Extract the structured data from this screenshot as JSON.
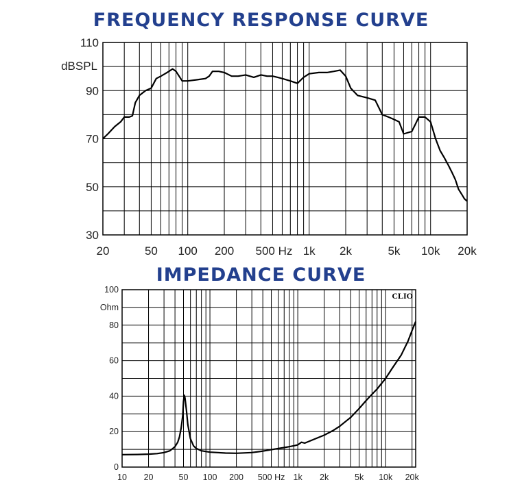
{
  "titles": {
    "frequency": "FREQUENCY RESPONSE CURVE",
    "impedance": "IMPEDANCE CURVE"
  },
  "chart_data": [
    {
      "type": "line",
      "title": "FREQUENCY RESPONSE CURVE",
      "ylabel": "dBSPL",
      "xlabel": "",
      "x_scale": "log",
      "xlim": [
        20,
        20000
      ],
      "ylim": [
        30,
        110
      ],
      "grid": true,
      "x_tick_labels": [
        {
          "value": 20,
          "label": "20"
        },
        {
          "value": 50,
          "label": "50"
        },
        {
          "value": 100,
          "label": "100"
        },
        {
          "value": 200,
          "label": "200"
        },
        {
          "value": 500,
          "label": "500 Hz"
        },
        {
          "value": 1000,
          "label": "1k"
        },
        {
          "value": 2000,
          "label": "2k"
        },
        {
          "value": 5000,
          "label": "5k"
        },
        {
          "value": 10000,
          "label": "10k"
        },
        {
          "value": 20000,
          "label": "20k"
        }
      ],
      "y_tick_labels": [
        {
          "value": 110,
          "label": "110"
        },
        {
          "value": 90,
          "label": "90"
        },
        {
          "value": 70,
          "label": "70"
        },
        {
          "value": 50,
          "label": "50"
        },
        {
          "value": 30,
          "label": "30"
        }
      ],
      "series": [
        {
          "x": [
            20,
            22,
            25,
            28,
            30,
            33,
            35,
            37,
            40,
            45,
            50,
            55,
            60,
            65,
            70,
            75,
            80,
            90,
            100,
            120,
            140,
            150,
            160,
            180,
            200,
            230,
            260,
            300,
            350,
            400,
            450,
            500,
            550,
            600,
            700,
            800,
            900,
            1000,
            1200,
            1400,
            1600,
            1800,
            2000,
            2200,
            2500,
            3000,
            3500,
            4000,
            4500,
            5000,
            5500,
            6000,
            7000,
            7500,
            8000,
            8500,
            9000,
            10000,
            11000,
            12000,
            13000,
            14000,
            15000,
            16000,
            17000,
            18000,
            19000,
            20000
          ],
          "y": [
            70,
            72,
            75,
            77,
            79,
            79,
            79.5,
            85,
            88,
            90,
            91,
            95,
            96,
            97,
            98,
            99,
            98,
            94,
            94,
            94.5,
            95,
            96,
            98,
            98,
            97.5,
            96,
            96,
            96.5,
            95.5,
            96.5,
            96,
            96,
            95.5,
            95,
            94,
            93,
            95.5,
            97,
            97.5,
            97.5,
            98,
            98.5,
            96,
            91,
            88,
            87,
            86,
            80,
            79,
            78,
            77,
            72,
            73,
            76,
            79,
            79,
            79,
            77,
            70,
            65,
            62,
            59,
            56,
            53,
            49,
            47,
            45,
            44
          ]
        }
      ]
    },
    {
      "type": "line",
      "title": "IMPEDANCE CURVE",
      "ylabel": "Ohm",
      "xlabel": "",
      "x_scale": "log",
      "xlim": [
        10,
        22000
      ],
      "ylim": [
        0,
        100
      ],
      "grid": true,
      "annotation": "CLIO",
      "x_tick_labels": [
        {
          "value": 10,
          "label": "10"
        },
        {
          "value": 20,
          "label": "20"
        },
        {
          "value": 50,
          "label": "50"
        },
        {
          "value": 100,
          "label": "100"
        },
        {
          "value": 200,
          "label": "200"
        },
        {
          "value": 500,
          "label": "500 Hz"
        },
        {
          "value": 1000,
          "label": "1k"
        },
        {
          "value": 2000,
          "label": "2k"
        },
        {
          "value": 5000,
          "label": "5k"
        },
        {
          "value": 10000,
          "label": "10k"
        },
        {
          "value": 20000,
          "label": "20k"
        }
      ],
      "y_tick_labels": [
        {
          "value": 100,
          "label": "100"
        },
        {
          "value": 80,
          "label": "80"
        },
        {
          "value": 60,
          "label": "60"
        },
        {
          "value": 40,
          "label": "40"
        },
        {
          "value": 20,
          "label": "20"
        },
        {
          "value": 0,
          "label": "0"
        }
      ],
      "series": [
        {
          "x": [
            10,
            15,
            20,
            25,
            30,
            35,
            40,
            43,
            45,
            47,
            49,
            50,
            51,
            52,
            54,
            56,
            60,
            65,
            70,
            80,
            100,
            150,
            200,
            300,
            400,
            500,
            600,
            700,
            800,
            900,
            1000,
            1100,
            1200,
            1500,
            2000,
            2500,
            3000,
            4000,
            5000,
            6000,
            7000,
            8000,
            10000,
            12000,
            15000,
            18000,
            20000,
            22000
          ],
          "y": [
            7,
            7.1,
            7.3,
            7.6,
            8.2,
            9.2,
            11.5,
            14,
            17,
            22,
            29,
            37,
            40.5,
            39,
            32,
            24,
            16,
            12,
            10.5,
            9.2,
            8.4,
            7.9,
            7.8,
            8.2,
            9,
            9.8,
            10.5,
            11,
            11.5,
            12,
            12.5,
            14,
            13.5,
            15.5,
            18,
            20.5,
            23,
            28,
            33,
            37.5,
            41,
            44,
            50,
            56,
            63,
            71,
            77,
            82
          ]
        }
      ]
    }
  ]
}
